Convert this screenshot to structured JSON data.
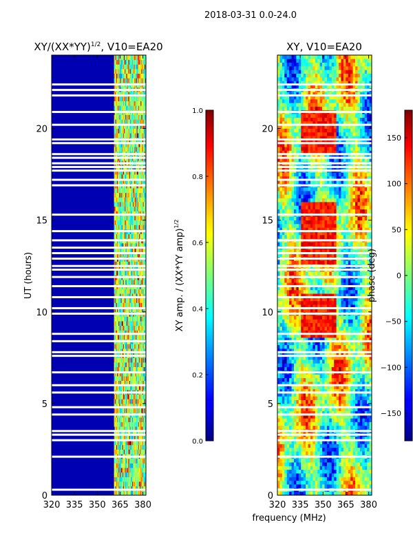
{
  "figure": {
    "suptitle": "2018-03-31 0.0-24.0",
    "shared_xlabel": "frequency (MHz)"
  },
  "chart_data": [
    {
      "type": "heatmap",
      "title_main": "XY/(XX*YY)",
      "title_sup": "1/2",
      "title_tail": ", V10=EA20",
      "xlabel": "frequency (MHz)",
      "ylabel": "UT (hours)",
      "xlim": [
        320,
        382
      ],
      "ylim": [
        0,
        24
      ],
      "xticks": [
        320,
        335,
        350,
        365,
        380
      ],
      "yticks": [
        0,
        5,
        10,
        15,
        20
      ],
      "colormap": "jet",
      "colorbar": {
        "range": [
          0.0,
          1.0
        ],
        "ticks": [
          "0.0",
          "0.2",
          "0.4",
          "0.6",
          "0.8",
          "1.0"
        ],
        "label_main": "XY amp. / (XX*YY amp)",
        "label_sup": "1/2"
      },
      "background_value": 0.05,
      "flagged_time_gaps_hours": [
        0.3,
        2.1,
        3.0,
        3.3,
        3.5,
        4.4,
        4.8,
        5.6,
        6.0,
        6.7,
        7.6,
        7.8,
        8.4,
        8.8,
        9.9,
        10.2,
        10.8,
        11.4,
        11.9,
        12.3,
        12.5,
        12.9,
        13.2,
        13.5,
        13.9,
        14.4,
        15.3,
        16.9,
        17.2,
        17.7,
        17.9,
        18.1,
        18.4,
        18.6,
        19.2,
        19.4,
        20.2,
        20.9,
        21.8,
        22.1,
        22.4
      ],
      "bright_channel_columns_mhz": [
        361.5,
        363.5,
        367.5,
        370.5,
        374.5,
        377.5,
        379.5
      ]
    },
    {
      "type": "heatmap",
      "title": "XY, V10=EA20",
      "xlabel": "frequency (MHz)",
      "ylabel": "",
      "xlim": [
        320,
        382
      ],
      "ylim": [
        0,
        24
      ],
      "xticks": [
        320,
        335,
        350,
        365,
        380
      ],
      "yticks": [
        0,
        5,
        10,
        15,
        20
      ],
      "colormap": "jet",
      "colorbar": {
        "range": [
          -180,
          180
        ],
        "ticks": [
          "−150",
          "−100",
          "−50",
          "0",
          "50",
          "100",
          "150"
        ],
        "tick_values": [
          -150,
          -100,
          -50,
          0,
          50,
          100,
          150
        ],
        "label": "phase (deg)"
      },
      "flagged_time_gaps_hours": [
        0.3,
        2.1,
        3.0,
        3.3,
        3.5,
        4.4,
        4.8,
        5.6,
        6.0,
        6.7,
        7.6,
        7.8,
        8.4,
        8.8,
        9.9,
        10.2,
        10.8,
        11.4,
        11.9,
        12.3,
        12.5,
        12.9,
        13.2,
        13.5,
        13.9,
        14.4,
        15.3,
        16.9,
        17.2,
        17.7,
        17.9,
        18.1,
        18.4,
        18.6,
        19.2,
        19.4,
        20.2,
        20.9,
        21.8,
        22.1,
        22.4
      ]
    }
  ]
}
